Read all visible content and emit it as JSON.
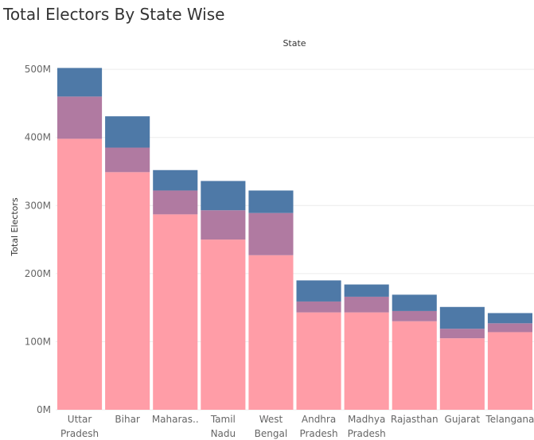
{
  "chart_data": {
    "type": "bar",
    "stacked": true,
    "title": "Total Electors By State Wise",
    "column_header": "State",
    "ylabel": "Total Electors",
    "ylim": [
      0,
      520
    ],
    "yticks": [
      0,
      100,
      200,
      300,
      400,
      500
    ],
    "ytick_labels": [
      "0M",
      "100M",
      "200M",
      "300M",
      "400M",
      "500M"
    ],
    "grid": true,
    "categories": [
      [
        "Uttar",
        "Pradesh"
      ],
      [
        "Bihar"
      ],
      [
        "Maharas.."
      ],
      [
        "Tamil",
        "Nadu"
      ],
      [
        "West",
        "Bengal"
      ],
      [
        "Andhra",
        "Pradesh"
      ],
      [
        "Madhya",
        "Pradesh"
      ],
      [
        "Rajasthan"
      ],
      [
        "Gujarat"
      ],
      [
        "Telangana"
      ]
    ],
    "series": [
      {
        "color": "#ff9da7",
        "values": [
          398,
          349,
          287,
          250,
          227,
          143,
          143,
          130,
          105,
          114
        ]
      },
      {
        "color": "#b07aa1",
        "values": [
          62,
          36,
          35,
          43,
          62,
          16,
          23,
          15,
          14,
          13
        ]
      },
      {
        "color": "#4e79a7",
        "values": [
          42,
          46,
          30,
          43,
          33,
          31,
          18,
          24,
          32,
          15
        ]
      }
    ]
  }
}
